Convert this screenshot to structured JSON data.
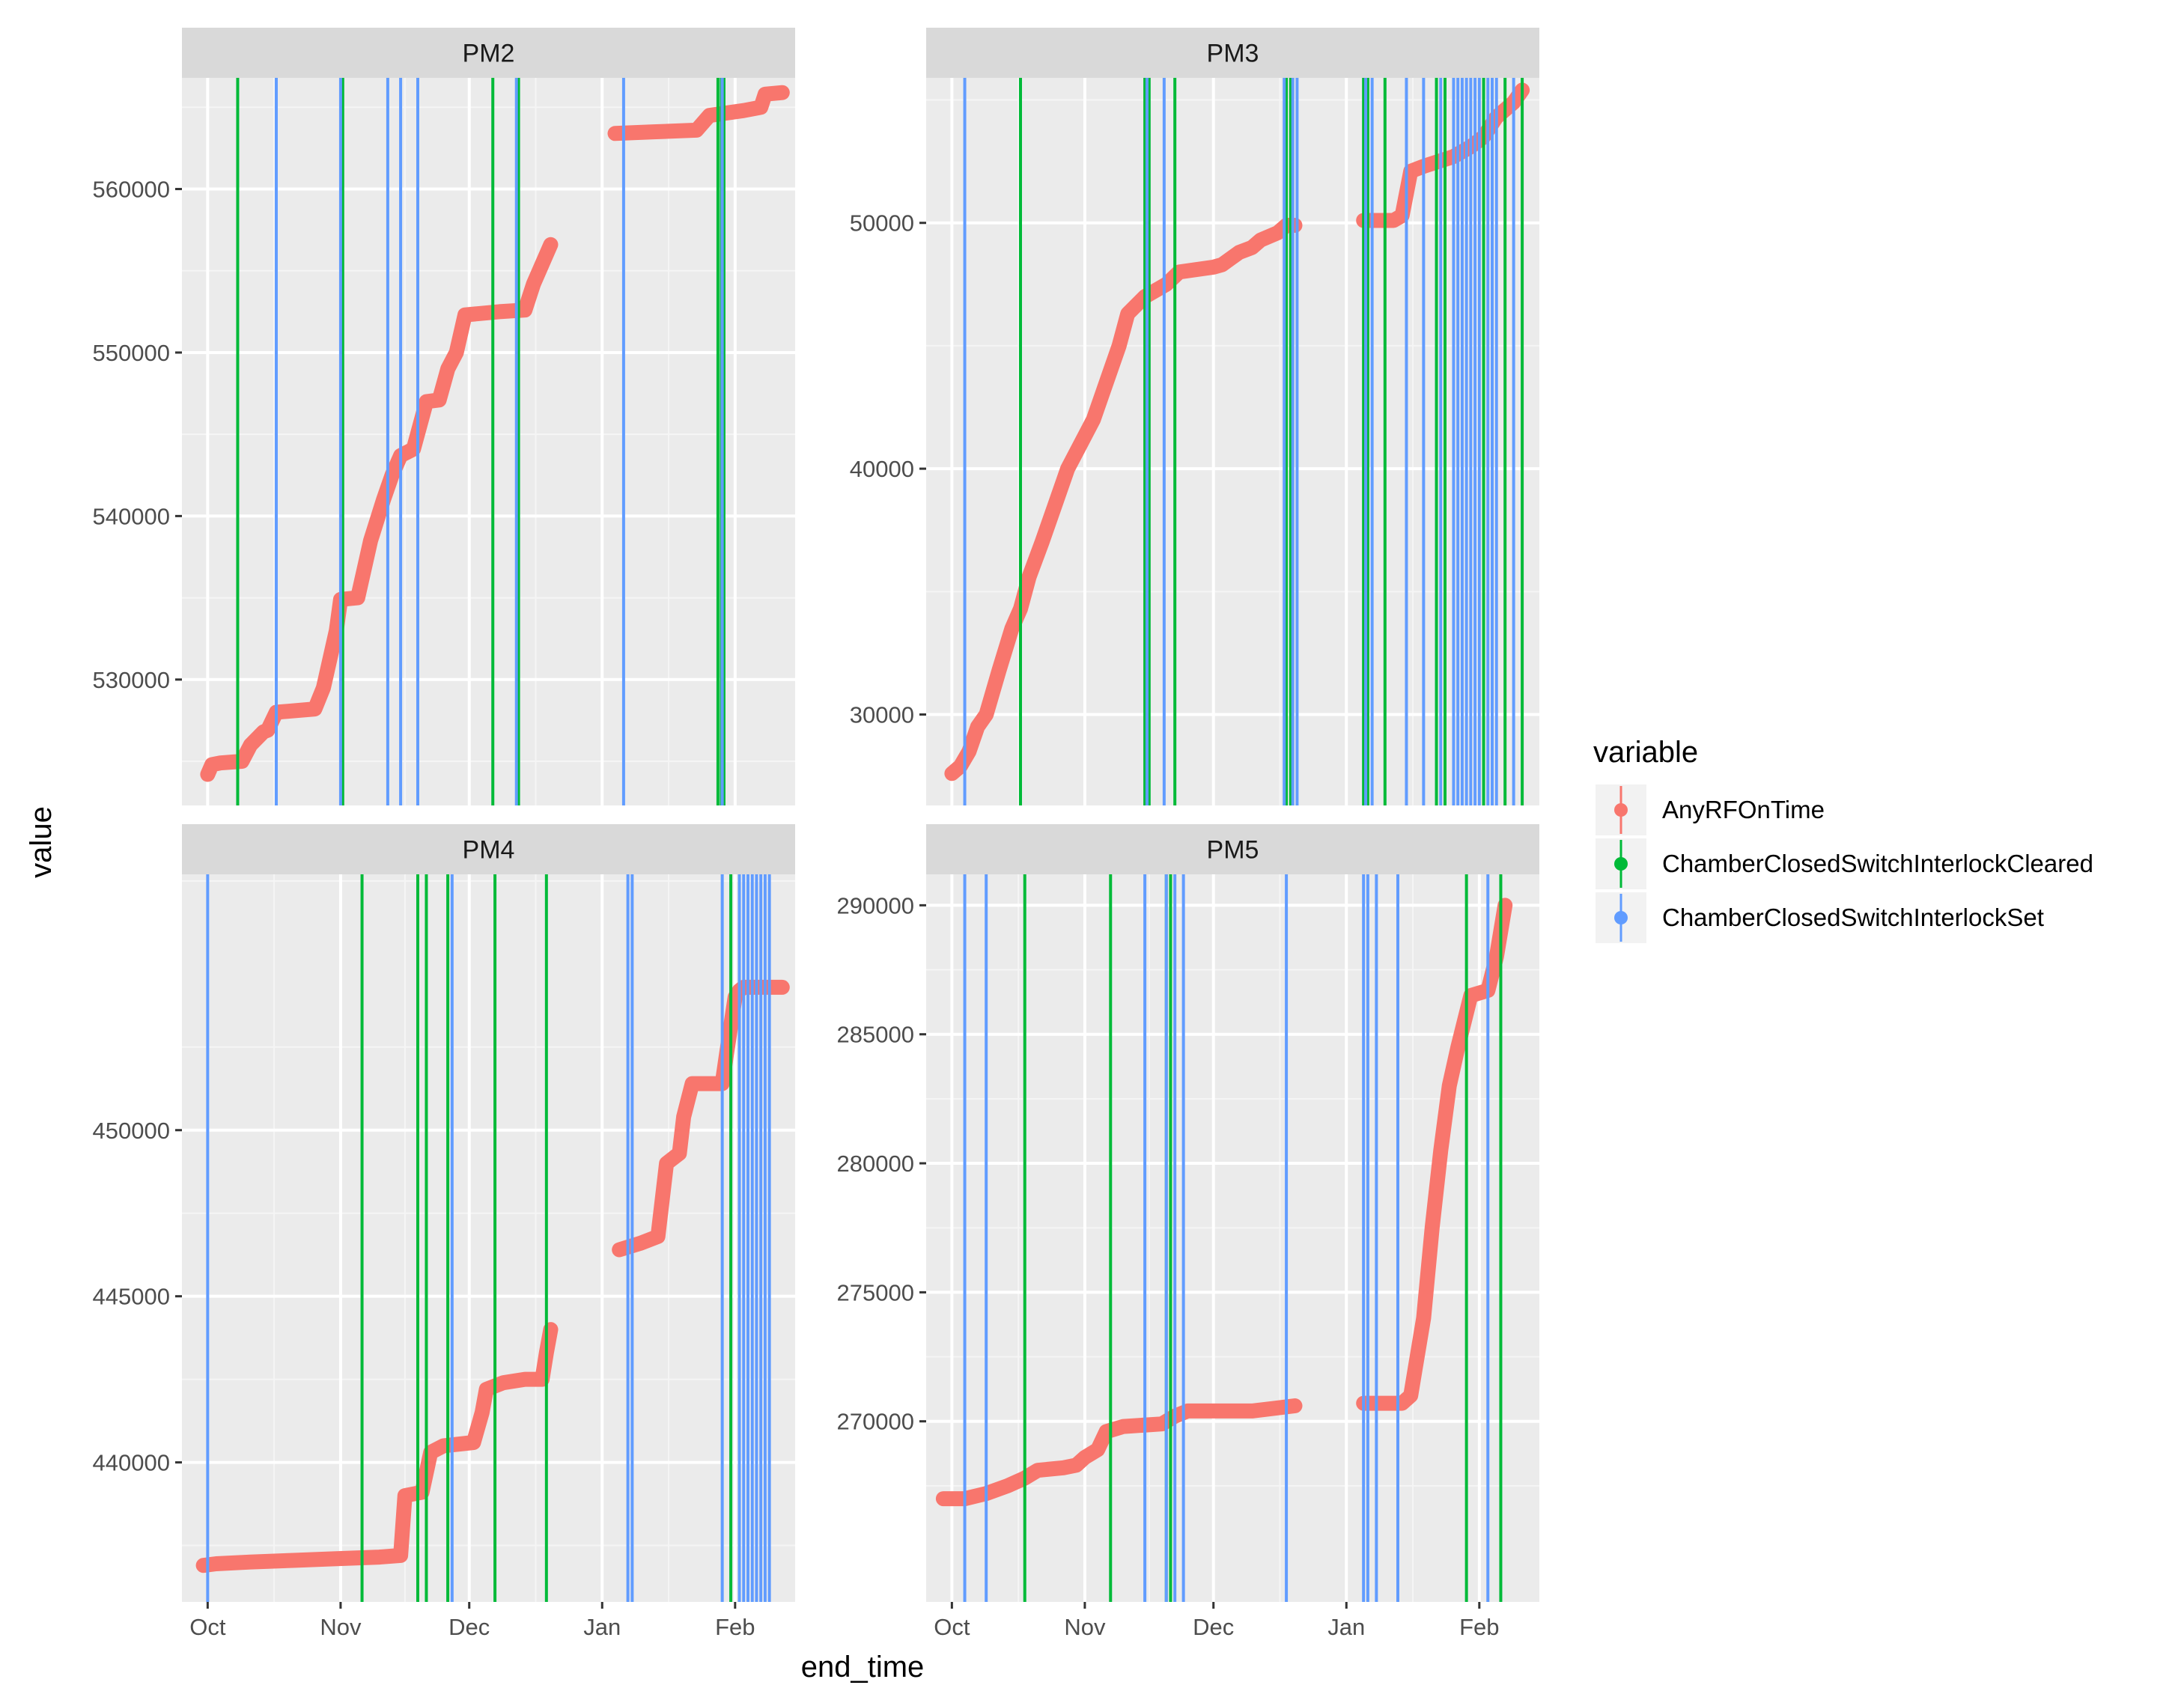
{
  "chart_data": {
    "type": "line",
    "x_axis_label": "end_time",
    "y_axis_label": "value",
    "x_ticks": [
      "Oct",
      "Nov",
      "Dec",
      "Jan",
      "Feb"
    ],
    "x_tick_days": [
      0,
      31,
      61,
      92,
      123
    ],
    "x_range_days": [
      -6,
      137
    ],
    "legend": {
      "title": "variable",
      "placement": "right",
      "entries": [
        {
          "label": "AnyRFOnTime",
          "color": "#F8766D",
          "kind": "point"
        },
        {
          "label": "ChamberClosedSwitchInterlockCleared",
          "color": "#00BA38",
          "kind": "line"
        },
        {
          "label": "ChamberClosedSwitchInterlockSet",
          "color": "#619CFF",
          "kind": "line"
        }
      ]
    },
    "panels": [
      {
        "name": "PM2",
        "ylim": [
          522300,
          566800
        ],
        "yticks": [
          530000,
          540000,
          550000,
          560000
        ],
        "ytick_labels": [
          "530000",
          "540000",
          "550000",
          "560000"
        ],
        "series": [
          [
            [
              0,
              524200
            ],
            [
              1,
              524800
            ],
            [
              3,
              524900
            ],
            [
              8,
              525000
            ],
            [
              10,
              526000
            ],
            [
              13,
              526800
            ],
            [
              14,
              526900
            ],
            [
              16,
              528000
            ],
            [
              25,
              528200
            ],
            [
              27,
              529500
            ],
            [
              30,
              533000
            ],
            [
              31,
              534900
            ],
            [
              35,
              535000
            ],
            [
              38,
              538500
            ],
            [
              41,
              541000
            ],
            [
              43,
              542500
            ],
            [
              45,
              543700
            ],
            [
              48,
              544100
            ],
            [
              51,
              547000
            ],
            [
              54,
              547100
            ],
            [
              56,
              549000
            ],
            [
              58,
              550000
            ],
            [
              60,
              552300
            ],
            [
              68,
              552500
            ],
            [
              74,
              552600
            ],
            [
              76,
              554200
            ],
            [
              80,
              556600
            ]
          ],
          [
            [
              95,
              563400
            ],
            [
              104,
              563500
            ],
            [
              114,
              563600
            ],
            [
              117,
              564500
            ],
            [
              125,
              564800
            ],
            [
              129,
              565000
            ],
            [
              130,
              565800
            ],
            [
              134,
              565900
            ]
          ]
        ],
        "cleared_days": [
          7,
          31.5,
          66.5,
          72.5,
          119,
          119.8,
          120.4
        ],
        "set_days": [
          16,
          31,
          42,
          45,
          49,
          72,
          97,
          120
        ]
      },
      {
        "name": "PM3",
        "ylim": [
          26300,
          55900
        ],
        "yticks": [
          30000,
          40000,
          50000
        ],
        "ytick_labels": [
          "30000",
          "40000",
          "50000"
        ],
        "series": [
          [
            [
              0,
              27600
            ],
            [
              2,
              27900
            ],
            [
              4,
              28500
            ],
            [
              6,
              29500
            ],
            [
              8,
              30000
            ],
            [
              11,
              31800
            ],
            [
              14,
              33500
            ],
            [
              16,
              34300
            ],
            [
              18,
              35600
            ],
            [
              21,
              37000
            ],
            [
              24,
              38500
            ],
            [
              27,
              40000
            ],
            [
              30,
              41000
            ],
            [
              33,
              42000
            ],
            [
              35,
              43000
            ],
            [
              39,
              45000
            ],
            [
              41,
              46300
            ],
            [
              45,
              47000
            ],
            [
              50,
              47500
            ],
            [
              53,
              48000
            ],
            [
              57,
              48100
            ],
            [
              61,
              48200
            ],
            [
              63,
              48300
            ],
            [
              67,
              48800
            ],
            [
              70,
              49000
            ],
            [
              72,
              49300
            ],
            [
              76,
              49600
            ],
            [
              78,
              49900
            ],
            [
              80,
              49900
            ]
          ],
          [
            [
              96,
              50100
            ],
            [
              103,
              50100
            ],
            [
              105,
              50300
            ],
            [
              107,
              52100
            ],
            [
              110,
              52300
            ],
            [
              117,
              52700
            ],
            [
              121,
              53100
            ],
            [
              124,
              53500
            ],
            [
              127,
              54300
            ],
            [
              131,
              54900
            ],
            [
              133,
              55400
            ]
          ]
        ],
        "cleared_days": [
          16,
          45,
          46,
          52,
          78,
          79,
          96,
          97,
          101,
          113,
          115,
          124,
          129,
          133
        ],
        "set_days": [
          3,
          45.5,
          49.5,
          77.5,
          79.5,
          80.5,
          96.5,
          98,
          106,
          110,
          114,
          117,
          118,
          119,
          120,
          121,
          122,
          123,
          125,
          126,
          127,
          131
        ]
      },
      {
        "name": "PM4",
        "ylim": [
          435800,
          457700
        ],
        "yticks": [
          440000,
          445000,
          450000
        ],
        "ytick_labels": [
          "440000",
          "445000",
          "450000"
        ],
        "series": [
          [
            [
              -1,
              436900
            ],
            [
              2,
              436950
            ],
            [
              10,
              437000
            ],
            [
              20,
              437050
            ],
            [
              30,
              437100
            ],
            [
              40,
              437150
            ],
            [
              45,
              437200
            ],
            [
              46,
              439000
            ],
            [
              50,
              439100
            ],
            [
              52,
              440300
            ],
            [
              55,
              440500
            ],
            [
              62,
              440600
            ],
            [
              64,
              441500
            ],
            [
              65,
              442200
            ],
            [
              69,
              442400
            ],
            [
              74,
              442500
            ],
            [
              78,
              442500
            ],
            [
              79,
              443300
            ],
            [
              80,
              444000
            ]
          ],
          [
            [
              96,
              446400
            ],
            [
              101,
              446600
            ],
            [
              105,
              446800
            ],
            [
              107,
              449000
            ],
            [
              110,
              449300
            ],
            [
              111,
              450400
            ],
            [
              113,
              451400
            ],
            [
              120,
              451400
            ],
            [
              121,
              452300
            ],
            [
              123,
              454000
            ],
            [
              124,
              454200
            ],
            [
              125,
              454300
            ],
            [
              134,
              454300
            ]
          ]
        ],
        "cleared_days": [
          36,
          49,
          51,
          56,
          67,
          79,
          122
        ],
        "set_days": [
          0,
          57,
          98,
          99,
          120,
          124,
          125,
          126,
          127,
          128,
          129,
          130,
          131
        ]
      },
      {
        "name": "PM5",
        "ylim": [
          263000,
          291200
        ],
        "yticks": [
          270000,
          275000,
          280000,
          285000,
          290000
        ],
        "ytick_labels": [
          "270000",
          "275000",
          "280000",
          "285000",
          "290000"
        ],
        "series": [
          [
            [
              -2,
              267000
            ],
            [
              3,
              267000
            ],
            [
              8,
              267200
            ],
            [
              13,
              267500
            ],
            [
              17,
              267800
            ],
            [
              20,
              268100
            ],
            [
              26,
              268200
            ],
            [
              29,
              268300
            ],
            [
              31,
              268600
            ],
            [
              34,
              268900
            ],
            [
              36,
              269600
            ],
            [
              40,
              269800
            ],
            [
              49,
              269900
            ],
            [
              52,
              270200
            ],
            [
              55,
              270400
            ],
            [
              70,
              270400
            ],
            [
              75,
              270500
            ],
            [
              80,
              270600
            ]
          ],
          [
            [
              96,
              270700
            ],
            [
              105,
              270700
            ],
            [
              107,
              271000
            ],
            [
              108,
              272000
            ],
            [
              110,
              274000
            ],
            [
              112,
              277500
            ],
            [
              114,
              280500
            ],
            [
              116,
              283000
            ],
            [
              118,
              284500
            ],
            [
              121,
              286500
            ],
            [
              125,
              286700
            ],
            [
              127,
              288000
            ],
            [
              129,
              290000
            ]
          ]
        ],
        "cleared_days": [
          17,
          37,
          50,
          51,
          120,
          128
        ],
        "set_days": [
          3,
          8,
          45,
          50,
          52,
          54,
          78,
          96,
          97,
          99,
          104,
          125
        ]
      }
    ]
  }
}
